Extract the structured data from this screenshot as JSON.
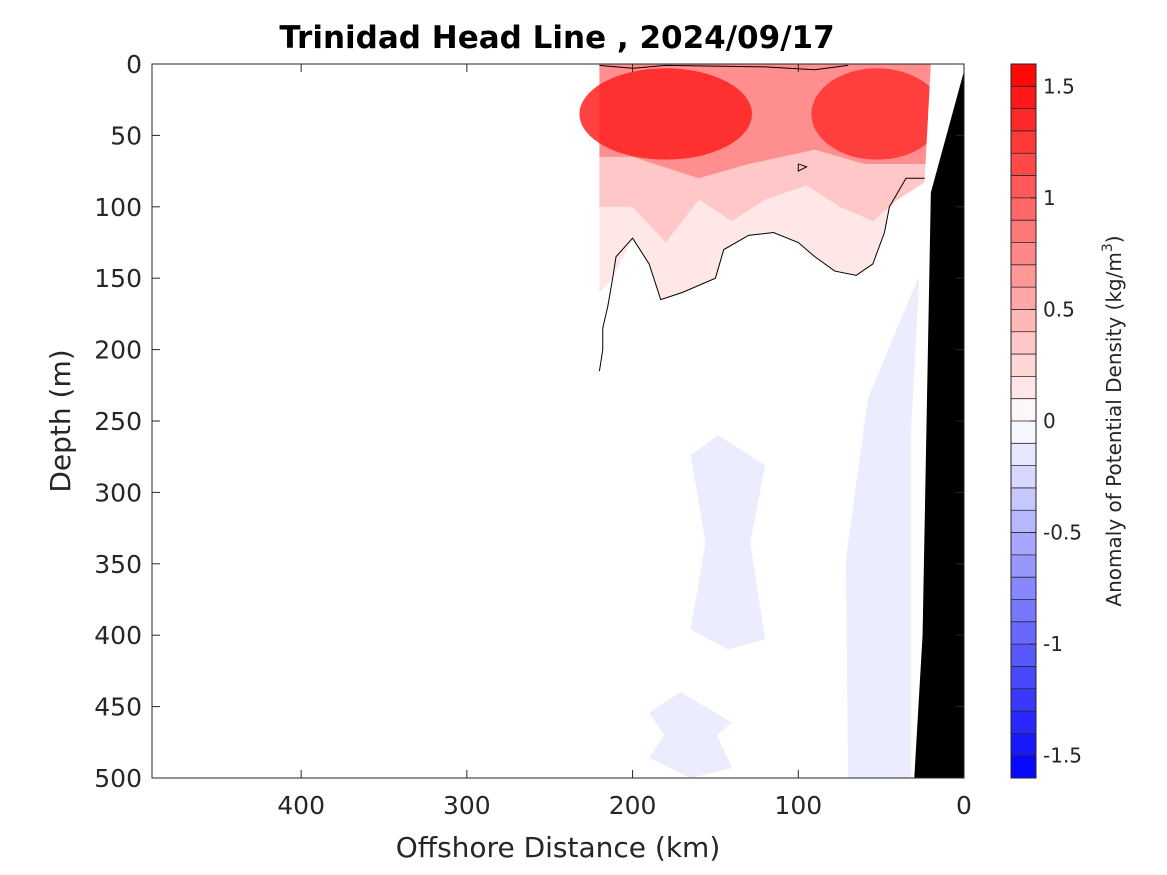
{
  "chart_data": {
    "type": "heatmap",
    "title": "Trinidad Head Line , 2024/09/17",
    "xlabel": "Offshore Distance (km)",
    "ylabel": "Depth (m)",
    "xlim": [
      490,
      0
    ],
    "ylim": [
      0,
      500
    ],
    "x_reversed": true,
    "y_reversed": true,
    "xticks": [
      400,
      300,
      200,
      100,
      0
    ],
    "yticks": [
      0,
      50,
      100,
      150,
      200,
      250,
      300,
      350,
      400,
      450,
      500
    ],
    "grid": false,
    "colorbar": {
      "label": "Anomaly of Potential Density (kg/m",
      "label_sup": "3",
      "label_close": ")",
      "range": [
        -1.6,
        1.6
      ],
      "levels": 32,
      "ticks": [
        1.5,
        1,
        0.5,
        0,
        -0.5,
        -1,
        -1.5
      ],
      "tick_labels": [
        "1.5",
        "1",
        "0.5",
        "0",
        "-0.5",
        "-1",
        "-1.5"
      ],
      "positive_color": "#ff0000",
      "negative_color": "#0000ff"
    },
    "data_coverage_km": [
      220,
      20
    ],
    "anomaly_regions": [
      {
        "name": "surface-positive-core-offshore",
        "distance_km": [
          220,
          140
        ],
        "depth_m": [
          10,
          60
        ],
        "anomaly": 1.4
      },
      {
        "name": "surface-positive-core-nearshore",
        "distance_km": [
          80,
          25
        ],
        "depth_m": [
          10,
          60
        ],
        "anomaly": 1.3
      },
      {
        "name": "positive-band",
        "distance_km": [
          220,
          20
        ],
        "depth_m": [
          0,
          150
        ],
        "anomaly": 0.4
      },
      {
        "name": "negative-patch-mid",
        "distance_km": [
          165,
          120
        ],
        "depth_m": [
          260,
          410
        ],
        "anomaly": -0.1
      },
      {
        "name": "negative-patch-deep",
        "distance_km": [
          190,
          140
        ],
        "depth_m": [
          440,
          500
        ],
        "anomaly": -0.1
      },
      {
        "name": "negative-slope-band",
        "distance_km": [
          70,
          30
        ],
        "depth_m": [
          150,
          500
        ],
        "anomaly": -0.1
      }
    ],
    "zero_contour": [
      [
        220,
        215
      ],
      [
        218,
        200
      ],
      [
        218,
        185
      ],
      [
        215,
        170
      ],
      [
        212,
        150
      ],
      [
        210,
        135
      ],
      [
        200,
        122
      ],
      [
        190,
        140
      ],
      [
        183,
        165
      ],
      [
        170,
        160
      ],
      [
        150,
        150
      ],
      [
        145,
        130
      ],
      [
        130,
        120
      ],
      [
        115,
        118
      ],
      [
        100,
        125
      ],
      [
        90,
        135
      ],
      [
        78,
        145
      ],
      [
        65,
        148
      ],
      [
        55,
        140
      ],
      [
        48,
        118
      ],
      [
        45,
        100
      ],
      [
        35,
        80
      ],
      [
        20,
        80
      ]
    ],
    "small_contour": [
      [
        100,
        70
      ],
      [
        95,
        72
      ],
      [
        100,
        75
      ],
      [
        100,
        70
      ]
    ],
    "bathymetry": [
      [
        0,
        5
      ],
      [
        20,
        90
      ],
      [
        25,
        400
      ],
      [
        30,
        500
      ]
    ],
    "bathymetry_color": "#000000"
  }
}
